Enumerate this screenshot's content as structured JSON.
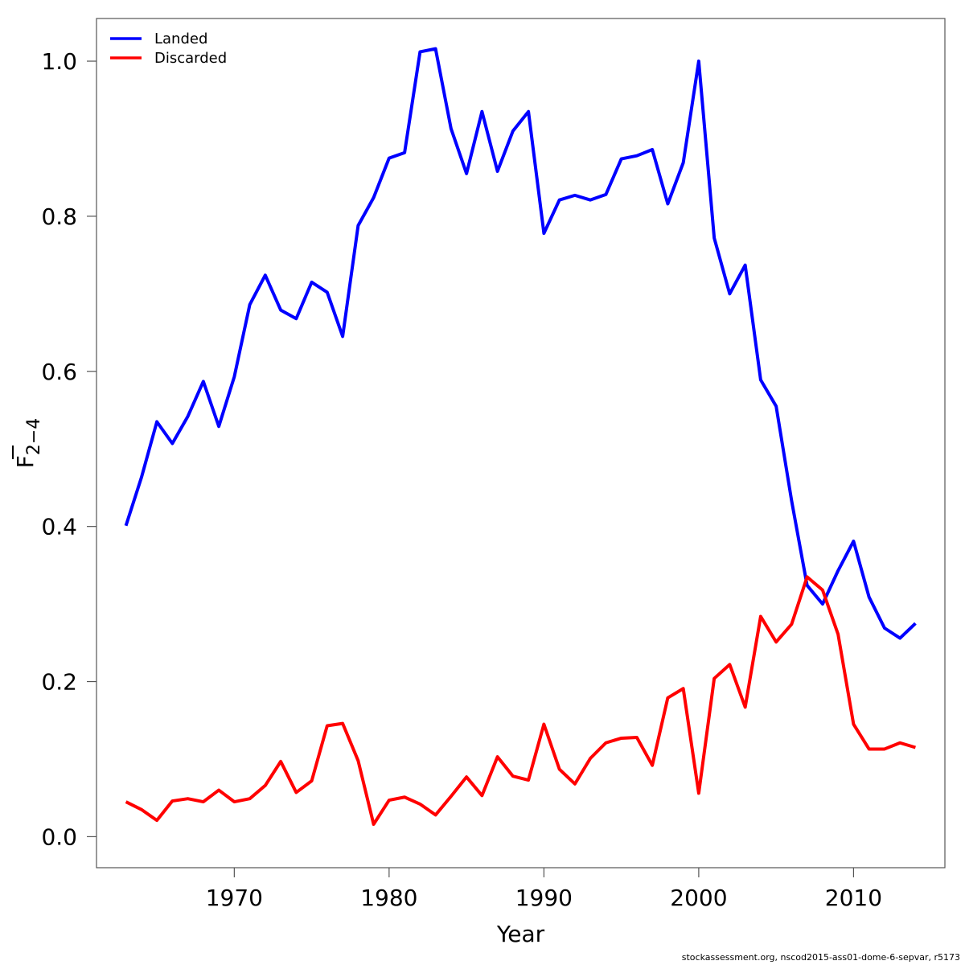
{
  "chart_data": {
    "type": "line",
    "title": "",
    "xlabel": "Year",
    "ylabel_main": "F",
    "ylabel_sub": "2−4",
    "xlim": [
      1961.1,
      2015.9
    ],
    "ylim": [
      -0.04,
      1.055
    ],
    "x_ticks": [
      1970,
      1980,
      1990,
      2000,
      2010
    ],
    "y_ticks": [
      "0.0",
      "0.2",
      "0.4",
      "0.6",
      "0.8",
      "1.0"
    ],
    "grid": false,
    "legend_position": "top-left",
    "x": [
      1963,
      1964,
      1965,
      1966,
      1967,
      1968,
      1969,
      1970,
      1971,
      1972,
      1973,
      1974,
      1975,
      1976,
      1977,
      1978,
      1979,
      1980,
      1981,
      1982,
      1983,
      1984,
      1985,
      1986,
      1987,
      1988,
      1989,
      1990,
      1991,
      1992,
      1993,
      1994,
      1995,
      1996,
      1997,
      1998,
      1999,
      2000,
      2001,
      2002,
      2003,
      2004,
      2005,
      2006,
      2007,
      2008,
      2009,
      2010,
      2011,
      2012,
      2013,
      2014
    ],
    "series": [
      {
        "name": "Landed",
        "color": "#0000ff",
        "values": [
          0.401,
          0.463,
          0.535,
          0.507,
          0.542,
          0.587,
          0.529,
          0.593,
          0.686,
          0.724,
          0.679,
          0.668,
          0.715,
          0.702,
          0.645,
          0.788,
          0.824,
          0.875,
          0.882,
          1.012,
          1.016,
          0.913,
          0.855,
          0.935,
          0.858,
          0.91,
          0.935,
          0.778,
          0.821,
          0.827,
          0.821,
          0.828,
          0.874,
          0.878,
          0.886,
          0.816,
          0.869,
          1.0,
          0.772,
          0.7,
          0.737,
          0.589,
          0.555,
          0.433,
          0.324,
          0.3,
          0.343,
          0.381,
          0.309,
          0.269,
          0.256,
          0.275
        ]
      },
      {
        "name": "Discarded",
        "color": "#ff0000",
        "values": [
          0.045,
          0.035,
          0.021,
          0.046,
          0.049,
          0.045,
          0.06,
          0.045,
          0.049,
          0.066,
          0.097,
          0.057,
          0.072,
          0.143,
          0.146,
          0.098,
          0.016,
          0.047,
          0.051,
          0.042,
          0.028,
          0.052,
          0.077,
          0.053,
          0.103,
          0.078,
          0.073,
          0.145,
          0.087,
          0.068,
          0.101,
          0.121,
          0.127,
          0.128,
          0.092,
          0.179,
          0.191,
          0.056,
          0.204,
          0.222,
          0.167,
          0.284,
          0.251,
          0.274,
          0.335,
          0.318,
          0.261,
          0.145,
          0.113,
          0.113,
          0.121,
          0.115
        ]
      }
    ]
  },
  "footer_text": "stockassessment.org, nscod2015-ass01-dome-6-sepvar, r5173"
}
